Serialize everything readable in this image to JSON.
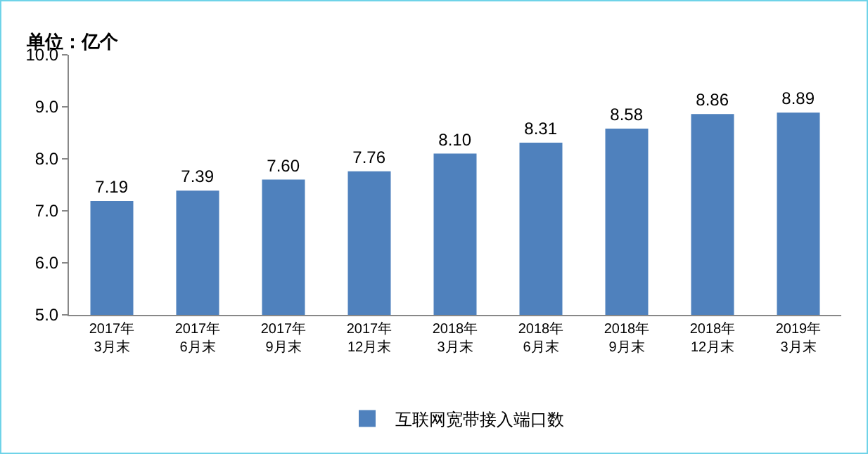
{
  "chart_data": {
    "type": "bar",
    "ylabel": "单位：亿个",
    "categories": [
      "2017年\n3月末",
      "2017年\n6月末",
      "2017年\n9月末",
      "2017年\n12月末",
      "2018年\n3月末",
      "2018年\n6月末",
      "2018年\n9月末",
      "2018年\n12月末",
      "2019年\n3月末"
    ],
    "series": [
      {
        "name": "互联网宽带接入端口数",
        "color": "#4f81bd",
        "values": [
          7.19,
          7.39,
          7.6,
          7.76,
          8.1,
          8.31,
          8.58,
          8.86,
          8.89
        ],
        "value_labels": [
          "7.19",
          "7.39",
          "7.60",
          "7.76",
          "8.10",
          "8.31",
          "8.58",
          "8.86",
          "8.89"
        ]
      }
    ],
    "ylim": [
      5,
      10
    ],
    "yticks": [
      {
        "value": 5,
        "label": "5.0"
      },
      {
        "value": 6,
        "label": "6.0"
      },
      {
        "value": 7,
        "label": "7.0"
      },
      {
        "value": 8,
        "label": "8.0"
      },
      {
        "value": 9,
        "label": "9.0"
      },
      {
        "value": 10,
        "label": "10.0"
      }
    ],
    "grid": false,
    "legend": "bottom",
    "data_labels": true
  }
}
